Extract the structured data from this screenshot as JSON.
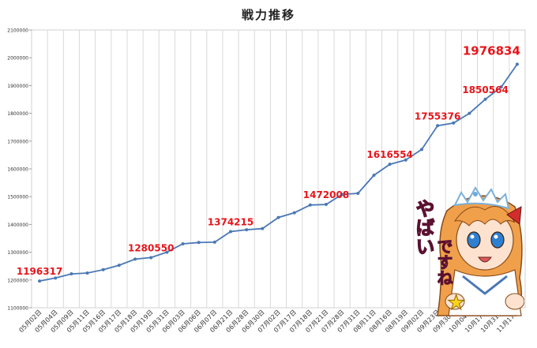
{
  "chart_data": {
    "type": "line",
    "title": "戦力推移",
    "xlabel": "",
    "ylabel": "",
    "ylim": [
      1100000,
      2100000
    ],
    "yticks": [
      1100000,
      1200000,
      1300000,
      1400000,
      1500000,
      1600000,
      1700000,
      1800000,
      1900000,
      2000000,
      2100000
    ],
    "grid": "vertical",
    "categories": [
      "05月02日",
      "05月04日",
      "05月09日",
      "05月11日",
      "05月16日",
      "05月17日",
      "05月18日",
      "05月19日",
      "05月31日",
      "06月03日",
      "06月06日",
      "06月07日",
      "06月21日",
      "06月28日",
      "06月30日",
      "07月02日",
      "07月17日",
      "07月18日",
      "07月21日",
      "07月28日",
      "07月31日",
      "08月11日",
      "08月16日",
      "08月19日",
      "09月02日",
      "09月23日",
      "09月30日",
      "10月04日",
      "10月17日",
      "10月31日",
      "11月17日"
    ],
    "series": [
      {
        "color": "#4a78b5",
        "values": [
          1196317,
          1207000,
          1222000,
          1225000,
          1237000,
          1253000,
          1275000,
          1280550,
          1300000,
          1330000,
          1335000,
          1336000,
          1374215,
          1381000,
          1385000,
          1425000,
          1442000,
          1470000,
          1472008,
          1508000,
          1512000,
          1577000,
          1616554,
          1632000,
          1670000,
          1755376,
          1765000,
          1800000,
          1850564,
          1895000,
          1976834
        ]
      }
    ],
    "annotations": [
      {
        "index": 0,
        "text": "1196317"
      },
      {
        "index": 7,
        "text": "1280550"
      },
      {
        "index": 12,
        "text": "1374215"
      },
      {
        "index": 18,
        "text": "1472008"
      },
      {
        "index": 22,
        "text": "1616554"
      },
      {
        "index": 25,
        "text": "1755376"
      },
      {
        "index": 28,
        "text": "1850564"
      },
      {
        "index": 30,
        "text": "1976834"
      }
    ],
    "annotation_color": "#e8141a"
  },
  "sticker": {
    "text_line1": "やばい",
    "text_line2": "ですね",
    "star": "★"
  }
}
